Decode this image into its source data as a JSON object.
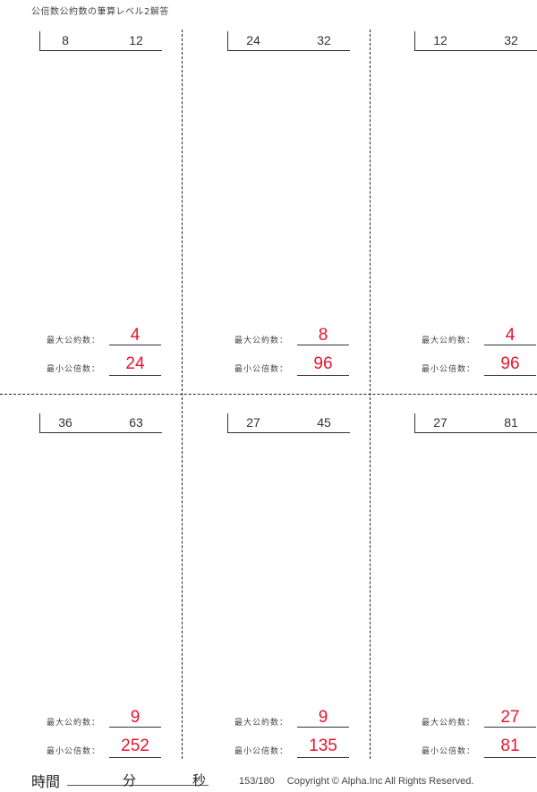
{
  "title": "公倍数公約数の筆算レベル2解答",
  "gcd_label": "最大公約数：",
  "lcm_label": "最小公倍数：",
  "problems": [
    {
      "a": "8",
      "b": "12",
      "gcd": "4",
      "lcm": "24"
    },
    {
      "a": "24",
      "b": "32",
      "gcd": "8",
      "lcm": "96"
    },
    {
      "a": "12",
      "b": "32",
      "gcd": "4",
      "lcm": "96"
    },
    {
      "a": "36",
      "b": "63",
      "gcd": "9",
      "lcm": "252"
    },
    {
      "a": "27",
      "b": "45",
      "gcd": "9",
      "lcm": "135"
    },
    {
      "a": "27",
      "b": "81",
      "gcd": "27",
      "lcm": "81"
    }
  ],
  "answer_color": "#e8142c",
  "footer": {
    "time_label": "時間",
    "minutes_label": "分",
    "seconds_label": "秒",
    "page": "153/180",
    "copyright": "Copyright ©  Alpha.Inc All Rights Reserved."
  }
}
